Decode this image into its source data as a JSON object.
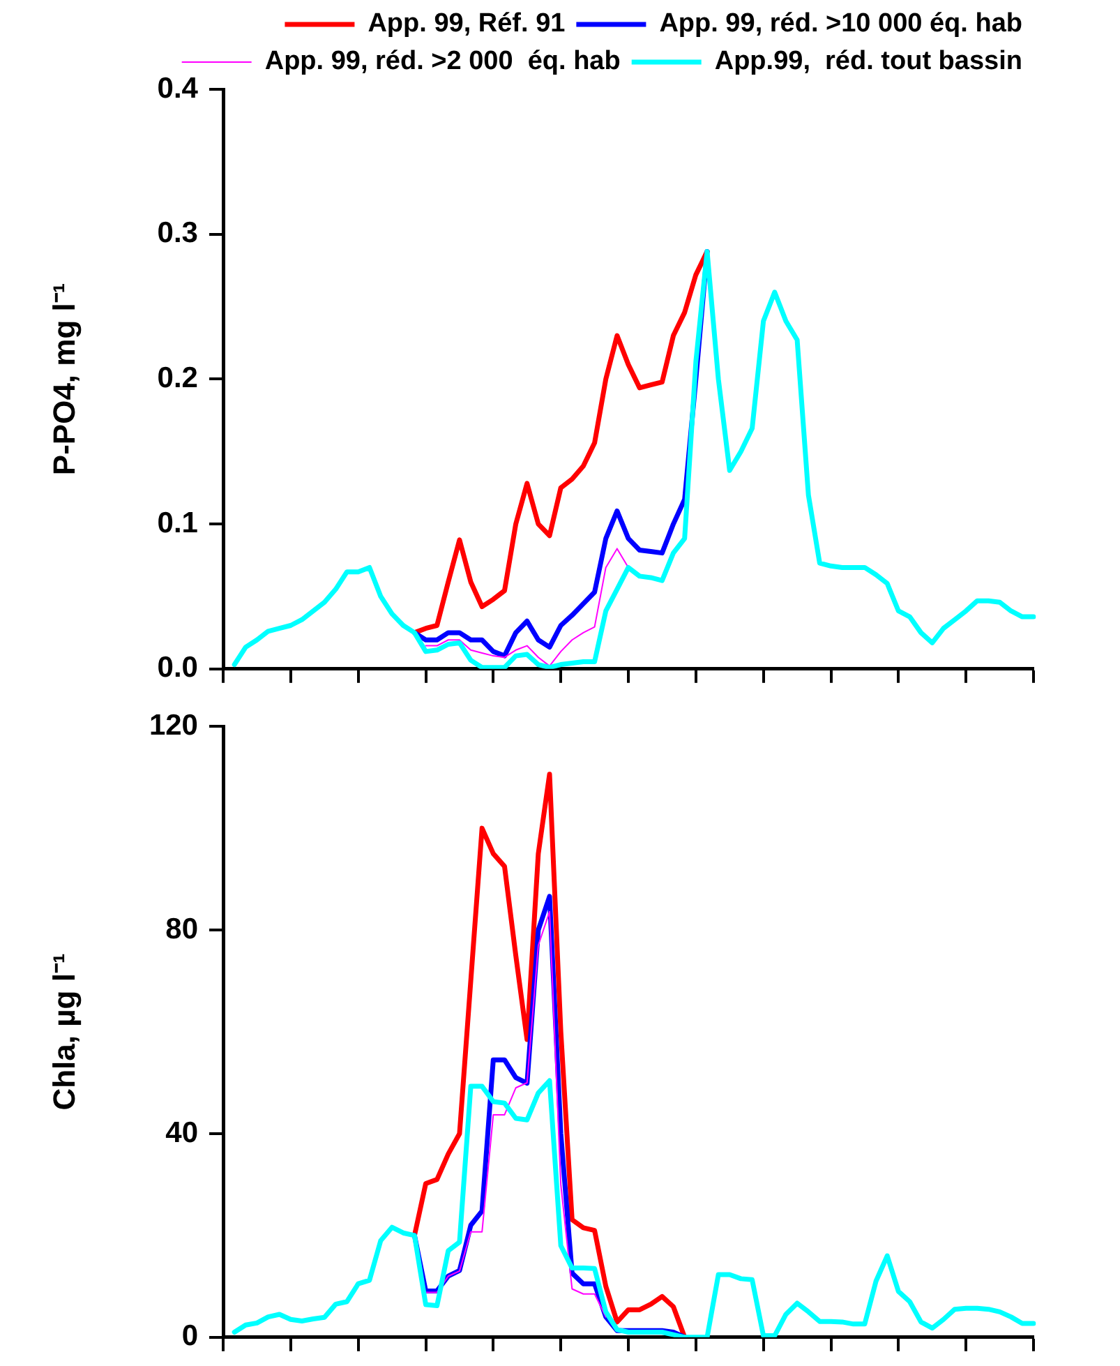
{
  "chart_data": [
    {
      "type": "line",
      "ylabel": "P-PO4, mg l⁻¹",
      "categories": [
        null,
        null,
        null,
        null,
        null,
        null,
        null,
        null,
        null,
        null,
        null,
        null,
        null,
        null,
        null,
        null,
        null,
        null,
        null,
        null,
        null,
        null,
        null,
        null,
        null,
        null,
        null,
        null,
        null,
        null,
        null,
        null,
        null,
        null,
        null,
        null,
        null,
        null,
        null,
        null,
        null,
        null,
        null,
        null,
        null,
        null,
        null,
        null,
        null,
        null,
        null,
        null,
        null,
        null,
        null,
        null,
        null,
        null,
        null,
        null,
        null,
        null,
        null,
        null,
        null,
        null,
        null,
        null,
        null,
        null,
        null,
        null,
        null
      ],
      "ylim": [
        0,
        0.4
      ],
      "yticks": [
        {
          "value": 0,
          "label": "0.0"
        },
        0.1,
        0.2,
        0.3,
        0.4
      ],
      "grid": false,
      "legend": "top right",
      "tick_labels": "y",
      "series": [
        {
          "name": "App. 99, Réf. 91",
          "color": "#ff0000",
          "values": [
            null,
            null,
            null,
            null,
            null,
            null,
            null,
            null,
            null,
            null,
            null,
            null,
            null,
            null,
            null,
            null,
            null,
            0.025,
            0.028,
            0.03,
            0.06,
            0.089,
            0.06,
            0.043,
            0.048,
            0.054,
            0.1,
            0.128,
            0.1,
            0.092,
            0.125,
            0.131,
            0.14,
            0.156,
            0.2,
            0.23,
            0.21,
            0.194,
            0.196,
            0.198,
            0.23,
            0.246,
            0.272,
            0.288,
            null,
            null,
            null,
            null,
            null,
            null,
            null,
            null,
            null,
            null,
            null,
            null,
            null,
            null,
            null,
            null,
            null,
            null,
            null,
            null,
            null,
            null,
            null,
            null,
            null,
            null,
            null,
            null,
            null
          ]
        },
        {
          "name": "App. 99, réd. >10 000 éq. hab",
          "color": "#0000ff",
          "values": [
            null,
            null,
            null,
            null,
            null,
            null,
            null,
            null,
            null,
            null,
            null,
            null,
            null,
            null,
            null,
            null,
            null,
            0.025,
            0.02,
            0.02,
            0.025,
            0.025,
            0.02,
            0.02,
            0.012,
            0.009,
            0.025,
            0.033,
            0.02,
            0.015,
            0.03,
            0.037,
            0.045,
            0.053,
            0.09,
            0.109,
            0.09,
            0.082,
            0.081,
            0.08,
            0.1,
            0.117,
            0.2,
            0.288,
            null,
            null,
            null,
            null,
            null,
            null,
            null,
            null,
            null,
            null,
            null,
            null,
            null,
            null,
            null,
            null,
            null,
            null,
            null,
            null,
            null,
            null,
            null,
            null,
            null,
            null,
            null,
            null,
            null
          ]
        },
        {
          "name": "App. 99, réd. >2 000  éq. hab",
          "color": "#ff00ff",
          "values": [
            null,
            null,
            null,
            null,
            null,
            null,
            null,
            null,
            null,
            null,
            null,
            null,
            null,
            null,
            null,
            null,
            null,
            null,
            0.016,
            0.016,
            0.02,
            0.02,
            0.013,
            0.011,
            0.009,
            0.008,
            0.013,
            0.016,
            0.008,
            0.002,
            0.012,
            0.02,
            0.025,
            0.029,
            0.07,
            0.083,
            0.07,
            null,
            null,
            null,
            null,
            null,
            null,
            null,
            null,
            null,
            null,
            null,
            null,
            null,
            null,
            null,
            null,
            null,
            null,
            null,
            null,
            null,
            null,
            null,
            null,
            null,
            null,
            null,
            null,
            null,
            null,
            null,
            null,
            null,
            null,
            null,
            null
          ]
        },
        {
          "name": "App.99,  réd. tout bassin",
          "color": "#00ffff",
          "values": [
            null,
            0.003,
            0.015,
            0.02,
            0.026,
            0.028,
            0.03,
            0.034,
            0.04,
            0.046,
            0.055,
            0.067,
            0.067,
            0.07,
            0.05,
            0.038,
            0.03,
            0.025,
            0.012,
            0.013,
            0.017,
            0.018,
            0.006,
            0.001,
            0.001,
            0.001,
            0.009,
            0.01,
            0.003,
            0.001,
            0.003,
            0.004,
            0.005,
            0.005,
            0.04,
            0.055,
            0.07,
            0.064,
            0.063,
            0.061,
            0.08,
            0.09,
            0.212,
            0.288,
            0.2,
            0.137,
            0.15,
            0.166,
            0.24,
            0.26,
            0.24,
            0.227,
            0.12,
            0.073,
            0.071,
            0.07,
            0.07,
            0.07,
            0.065,
            0.059,
            0.04,
            0.036,
            0.025,
            0.018,
            0.028,
            0.034,
            0.04,
            0.047,
            0.047,
            0.046,
            0.04,
            0.036,
            0.036
          ]
        }
      ]
    },
    {
      "type": "line",
      "ylabel": "Chla, µg l⁻¹",
      "categories": [
        null,
        null,
        null,
        null,
        null,
        null,
        null,
        null,
        null,
        null,
        null,
        null,
        null,
        null,
        null,
        null,
        null,
        null,
        null,
        null,
        null,
        null,
        null,
        null,
        null,
        null,
        null,
        null,
        null,
        null,
        null,
        null,
        null,
        null,
        null,
        null,
        null,
        null,
        null,
        null,
        null,
        null,
        null,
        null,
        null,
        null,
        null,
        null,
        null,
        null,
        null,
        null,
        null,
        null,
        null,
        null,
        null,
        null,
        null,
        null,
        null,
        null,
        null,
        null,
        null,
        null,
        null,
        null,
        null,
        null,
        null,
        null,
        null
      ],
      "ylim": [
        0,
        120
      ],
      "yticks": [
        0,
        40,
        80,
        120
      ],
      "grid": false,
      "tick_labels": "y",
      "series": [
        {
          "color": "#ff0000",
          "values": [
            null,
            null,
            null,
            null,
            null,
            null,
            null,
            null,
            null,
            null,
            null,
            null,
            null,
            null,
            null,
            null,
            null,
            20,
            30.2,
            31,
            36,
            40,
            70,
            100,
            95,
            92.5,
            75,
            58.5,
            95,
            110.6,
            60,
            23.1,
            21.5,
            21,
            10,
            3,
            5.4,
            5.4,
            6.5,
            8,
            6,
            0,
            null,
            null,
            null,
            null,
            null,
            null,
            null,
            null,
            null,
            null,
            null,
            null,
            null,
            null,
            null,
            null,
            null,
            null,
            null,
            null,
            null,
            null,
            null,
            null,
            null,
            null,
            null,
            null,
            null,
            null,
            null
          ]
        },
        {
          "color": "#0000ff",
          "values": [
            null,
            null,
            null,
            null,
            null,
            null,
            null,
            null,
            null,
            null,
            null,
            null,
            null,
            null,
            null,
            null,
            null,
            20,
            9.1,
            9.1,
            12,
            13.1,
            22,
            24.8,
            54.5,
            54.5,
            51,
            49.9,
            80,
            86.6,
            40,
            12.6,
            10.5,
            10.5,
            4,
            1.3,
            1.3,
            1.3,
            1.3,
            1.3,
            1,
            0,
            null,
            null,
            null,
            null,
            null,
            null,
            null,
            null,
            null,
            null,
            null,
            null,
            null,
            null,
            null,
            null,
            null,
            null,
            null,
            null,
            null,
            null,
            null,
            null,
            null,
            null,
            null,
            null,
            null,
            null,
            null
          ]
        },
        {
          "color": "#ff00ff",
          "values": [
            null,
            null,
            null,
            null,
            null,
            null,
            null,
            null,
            null,
            null,
            null,
            null,
            null,
            null,
            null,
            null,
            null,
            null,
            8.8,
            8.8,
            12,
            13,
            20.7,
            20.7,
            43.7,
            43.7,
            49,
            50,
            77,
            83.6,
            30,
            9.5,
            8.5,
            8.5,
            4,
            null,
            null,
            null,
            null,
            null,
            null,
            null,
            null,
            null,
            null,
            null,
            null,
            null,
            null,
            null,
            null,
            null,
            null,
            null,
            null,
            null,
            null,
            null,
            null,
            null,
            null,
            null,
            null,
            null,
            null,
            null,
            null,
            null,
            null,
            null,
            null,
            null,
            null
          ]
        },
        {
          "color": "#00ffff",
          "values": [
            null,
            1,
            2.4,
            2.8,
            4,
            4.5,
            3.5,
            3.2,
            3.6,
            3.9,
            6.5,
            7,
            10.5,
            11.2,
            19,
            21.6,
            20.5,
            20,
            6.4,
            6.2,
            17,
            18.7,
            49.3,
            49.3,
            46.3,
            46,
            43,
            42.7,
            48,
            50.4,
            18,
            13.6,
            13.6,
            13.5,
            5,
            1.5,
            1,
            1,
            1,
            1,
            0.5,
            0,
            0,
            0,
            12.3,
            12.3,
            11.5,
            11.3,
            0.3,
            0.3,
            4.5,
            6.7,
            5,
            3.1,
            3.1,
            3,
            2.6,
            2.6,
            11,
            16,
            9,
            7,
            3,
            1.8,
            3.5,
            5.5,
            5.7,
            5.7,
            5.5,
            5,
            4,
            2.7,
            2.7
          ]
        }
      ]
    }
  ]
}
